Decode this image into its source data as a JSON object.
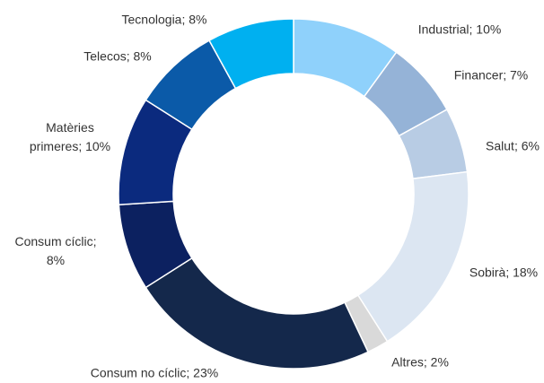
{
  "chart_data": {
    "type": "donut",
    "values": [
      10,
      7,
      6,
      18,
      2,
      23,
      8,
      10,
      8,
      8
    ],
    "value_labels": [
      "Industrial; 10%",
      "Financer; 7%",
      "Salut; 6%",
      "Sobirà; 18%",
      "Altres; 2%",
      "Consum no cíclic; 23%",
      "Consum cíclic;\n8%",
      "Matèries\nprimeres; 10%",
      "Telecos; 8%",
      "Tecnologia; 8%"
    ],
    "colors": [
      "#8fd1fb",
      "#95b3d7",
      "#b8cce4",
      "#dce6f2",
      "#d9d9d9",
      "#14284b",
      "#0c2160",
      "#0b2a7e",
      "#0b5aa8",
      "#00b0f0"
    ]
  }
}
